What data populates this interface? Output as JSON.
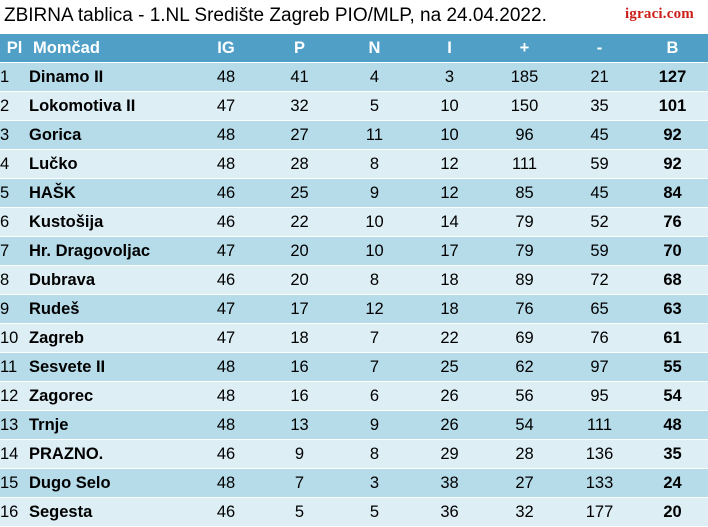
{
  "header": {
    "title": "ZBIRNA tablica - 1.NL Središte Zagreb PIO/MLP, na 24.04.2022.",
    "logo": "igraci.com"
  },
  "table": {
    "columns": [
      "Pl",
      "Momčad",
      "IG",
      "P",
      "N",
      "I",
      "+",
      "-",
      "B"
    ],
    "rows": [
      [
        "1",
        "Dinamo II",
        "48",
        "41",
        "4",
        "3",
        "185",
        "21",
        "127"
      ],
      [
        "2",
        "Lokomotiva II",
        "47",
        "32",
        "5",
        "10",
        "150",
        "35",
        "101"
      ],
      [
        "3",
        "Gorica",
        "48",
        "27",
        "11",
        "10",
        "96",
        "45",
        "92"
      ],
      [
        "4",
        "Lučko",
        "48",
        "28",
        "8",
        "12",
        "111",
        "59",
        "92"
      ],
      [
        "5",
        "HAŠK",
        "46",
        "25",
        "9",
        "12",
        "85",
        "45",
        "84"
      ],
      [
        "6",
        "Kustošija",
        "46",
        "22",
        "10",
        "14",
        "79",
        "52",
        "76"
      ],
      [
        "7",
        "Hr. Dragovoljac",
        "47",
        "20",
        "10",
        "17",
        "79",
        "59",
        "70"
      ],
      [
        "8",
        "Dubrava",
        "46",
        "20",
        "8",
        "18",
        "89",
        "72",
        "68"
      ],
      [
        "9",
        "Rudeš",
        "47",
        "17",
        "12",
        "18",
        "76",
        "65",
        "63"
      ],
      [
        "10",
        "Zagreb",
        "47",
        "18",
        "7",
        "22",
        "69",
        "76",
        "61"
      ],
      [
        "11",
        "Sesvete II",
        "48",
        "16",
        "7",
        "25",
        "62",
        "97",
        "55"
      ],
      [
        "12",
        "Zagorec",
        "48",
        "16",
        "6",
        "26",
        "56",
        "95",
        "54"
      ],
      [
        "13",
        "Trnje",
        "48",
        "13",
        "9",
        "26",
        "54",
        "111",
        "48"
      ],
      [
        "14",
        "PRAZNO.",
        "46",
        "9",
        "8",
        "29",
        "28",
        "136",
        "35"
      ],
      [
        "15",
        "Dugo Selo",
        "48",
        "7",
        "3",
        "38",
        "27",
        "133",
        "24"
      ],
      [
        "16",
        "Segesta",
        "46",
        "5",
        "5",
        "36",
        "32",
        "177",
        "20"
      ]
    ]
  },
  "colors": {
    "header_bg": "#4f9fc7",
    "row_odd": "#b7dce9",
    "row_even": "#ddeef5",
    "logo": "#cc1f1a"
  }
}
